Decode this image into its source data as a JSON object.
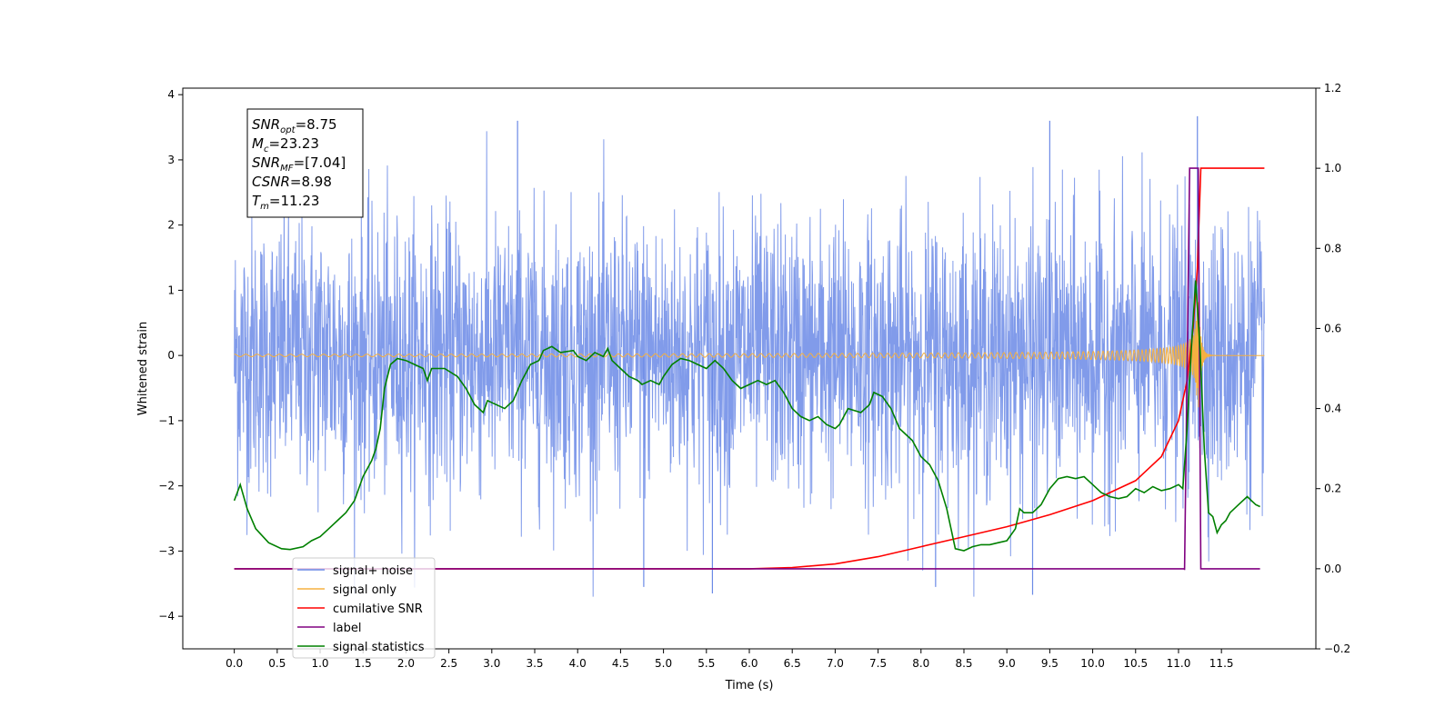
{
  "chart_data": {
    "type": "line",
    "xlabel": "Time (s)",
    "ylabel_left": "Whitened strain",
    "ylabel_right": "",
    "xlim": [
      -0.6,
      12.6
    ],
    "ylim_left": [
      -4.5,
      4.1
    ],
    "ylim_right": [
      -0.2,
      1.2
    ],
    "x_ticks": [
      "0.0",
      "0.5",
      "1.0",
      "1.5",
      "2.0",
      "2.5",
      "3.0",
      "3.5",
      "4.0",
      "4.5",
      "5.0",
      "5.5",
      "6.0",
      "6.5",
      "7.0",
      "7.5",
      "8.0",
      "8.5",
      "9.0",
      "9.5",
      "10.0",
      "10.5",
      "11.0",
      "11.5"
    ],
    "y_ticks_left": [
      "4",
      "3",
      "2",
      "1",
      "0",
      "−1",
      "−2",
      "−3",
      "−4"
    ],
    "y_ticks_right": [
      "1.2",
      "1.0",
      "0.8",
      "0.6",
      "0.4",
      "0.2",
      "0.0",
      "−0.2"
    ],
    "grid": false,
    "legend_position": "lower-left",
    "stats_box": [
      {
        "sym": "SNR",
        "sub": "opt",
        "val": "=8.75"
      },
      {
        "sym": "M",
        "sub": "c",
        "val": "=23.23"
      },
      {
        "sym": "SNR",
        "sub": "MF",
        "val": "=[7.04]"
      },
      {
        "sym": "CSNR",
        "sub": "",
        "val": "=8.98"
      },
      {
        "sym": "T",
        "sub": "m",
        "val": "=11.23"
      }
    ],
    "series": [
      {
        "name": "signal+ noise",
        "axis": "left",
        "color": "#6b8ae6",
        "style": "noise",
        "x_range": [
          0.0,
          12.0
        ],
        "amplitude_range": [
          -3.7,
          3.7
        ],
        "notable_peaks": [
          [
            11.22,
            3.67
          ],
          [
            3.3,
            3.6
          ],
          [
            9.5,
            3.6
          ],
          [
            9.3,
            -3.67
          ],
          [
            5.57,
            -3.65
          ],
          [
            4.77,
            -3.55
          ],
          [
            8.17,
            -3.55
          ]
        ]
      },
      {
        "name": "signal only",
        "axis": "left",
        "color": "#f5b041",
        "style": "chirp",
        "t_merge": 11.23,
        "x_range": [
          0.0,
          12.0
        ]
      },
      {
        "name": "cumilative SNR",
        "axis": "right",
        "color": "#ff0000",
        "points": [
          [
            0.0,
            0.0
          ],
          [
            6.0,
            0.0
          ],
          [
            6.5,
            0.003
          ],
          [
            7.0,
            0.012
          ],
          [
            7.5,
            0.03
          ],
          [
            8.0,
            0.055
          ],
          [
            8.5,
            0.08
          ],
          [
            9.0,
            0.105
          ],
          [
            9.5,
            0.135
          ],
          [
            10.0,
            0.17
          ],
          [
            10.5,
            0.22
          ],
          [
            10.8,
            0.28
          ],
          [
            11.0,
            0.37
          ],
          [
            11.1,
            0.47
          ],
          [
            11.17,
            0.6
          ],
          [
            11.22,
            0.75
          ],
          [
            11.26,
            1.0
          ],
          [
            12.0,
            1.0
          ]
        ]
      },
      {
        "name": "label",
        "axis": "right",
        "color": "#800080",
        "points": [
          [
            0.0,
            0.0
          ],
          [
            11.07,
            0.0
          ],
          [
            11.07,
            -0.003
          ],
          [
            11.13,
            1.0
          ],
          [
            11.2,
            1.0
          ],
          [
            11.23,
            1.0
          ],
          [
            11.26,
            0.0
          ],
          [
            11.95,
            0.0
          ]
        ]
      },
      {
        "name": "signal statistics",
        "axis": "right",
        "color": "#008000",
        "points": [
          [
            0.0,
            0.17
          ],
          [
            0.07,
            0.21
          ],
          [
            0.15,
            0.15
          ],
          [
            0.25,
            0.1
          ],
          [
            0.4,
            0.065
          ],
          [
            0.55,
            0.05
          ],
          [
            0.65,
            0.048
          ],
          [
            0.8,
            0.055
          ],
          [
            0.9,
            0.07
          ],
          [
            1.0,
            0.08
          ],
          [
            1.1,
            0.1
          ],
          [
            1.2,
            0.12
          ],
          [
            1.3,
            0.14
          ],
          [
            1.4,
            0.17
          ],
          [
            1.5,
            0.23
          ],
          [
            1.6,
            0.27
          ],
          [
            1.65,
            0.3
          ],
          [
            1.7,
            0.35
          ],
          [
            1.75,
            0.45
          ],
          [
            1.82,
            0.51
          ],
          [
            1.9,
            0.525
          ],
          [
            2.0,
            0.52
          ],
          [
            2.1,
            0.51
          ],
          [
            2.2,
            0.5
          ],
          [
            2.25,
            0.47
          ],
          [
            2.3,
            0.5
          ],
          [
            2.45,
            0.5
          ],
          [
            2.6,
            0.48
          ],
          [
            2.7,
            0.45
          ],
          [
            2.8,
            0.41
          ],
          [
            2.9,
            0.39
          ],
          [
            2.95,
            0.42
          ],
          [
            3.05,
            0.41
          ],
          [
            3.15,
            0.4
          ],
          [
            3.25,
            0.42
          ],
          [
            3.35,
            0.47
          ],
          [
            3.45,
            0.51
          ],
          [
            3.55,
            0.52
          ],
          [
            3.6,
            0.545
          ],
          [
            3.7,
            0.555
          ],
          [
            3.8,
            0.54
          ],
          [
            3.95,
            0.545
          ],
          [
            4.0,
            0.53
          ],
          [
            4.1,
            0.52
          ],
          [
            4.2,
            0.54
          ],
          [
            4.3,
            0.53
          ],
          [
            4.35,
            0.55
          ],
          [
            4.4,
            0.52
          ],
          [
            4.5,
            0.5
          ],
          [
            4.6,
            0.48
          ],
          [
            4.7,
            0.47
          ],
          [
            4.75,
            0.46
          ],
          [
            4.85,
            0.47
          ],
          [
            4.95,
            0.46
          ],
          [
            5.0,
            0.48
          ],
          [
            5.1,
            0.51
          ],
          [
            5.2,
            0.525
          ],
          [
            5.3,
            0.52
          ],
          [
            5.4,
            0.51
          ],
          [
            5.5,
            0.5
          ],
          [
            5.6,
            0.52
          ],
          [
            5.7,
            0.5
          ],
          [
            5.8,
            0.47
          ],
          [
            5.9,
            0.45
          ],
          [
            6.0,
            0.46
          ],
          [
            6.1,
            0.47
          ],
          [
            6.2,
            0.46
          ],
          [
            6.3,
            0.47
          ],
          [
            6.4,
            0.44
          ],
          [
            6.5,
            0.4
          ],
          [
            6.6,
            0.38
          ],
          [
            6.7,
            0.37
          ],
          [
            6.8,
            0.38
          ],
          [
            6.9,
            0.36
          ],
          [
            7.0,
            0.35
          ],
          [
            7.05,
            0.36
          ],
          [
            7.15,
            0.4
          ],
          [
            7.3,
            0.39
          ],
          [
            7.4,
            0.41
          ],
          [
            7.45,
            0.44
          ],
          [
            7.55,
            0.43
          ],
          [
            7.65,
            0.4
          ],
          [
            7.75,
            0.35
          ],
          [
            7.9,
            0.32
          ],
          [
            8.0,
            0.28
          ],
          [
            8.1,
            0.26
          ],
          [
            8.2,
            0.22
          ],
          [
            8.3,
            0.15
          ],
          [
            8.35,
            0.1
          ],
          [
            8.4,
            0.05
          ],
          [
            8.5,
            0.045
          ],
          [
            8.6,
            0.055
          ],
          [
            8.7,
            0.06
          ],
          [
            8.8,
            0.06
          ],
          [
            8.9,
            0.065
          ],
          [
            9.0,
            0.07
          ],
          [
            9.1,
            0.1
          ],
          [
            9.15,
            0.15
          ],
          [
            9.2,
            0.14
          ],
          [
            9.3,
            0.14
          ],
          [
            9.4,
            0.16
          ],
          [
            9.5,
            0.2
          ],
          [
            9.6,
            0.225
          ],
          [
            9.7,
            0.23
          ],
          [
            9.8,
            0.225
          ],
          [
            9.9,
            0.23
          ],
          [
            10.0,
            0.21
          ],
          [
            10.1,
            0.19
          ],
          [
            10.2,
            0.18
          ],
          [
            10.3,
            0.175
          ],
          [
            10.4,
            0.18
          ],
          [
            10.5,
            0.2
          ],
          [
            10.6,
            0.19
          ],
          [
            10.7,
            0.205
          ],
          [
            10.8,
            0.195
          ],
          [
            10.9,
            0.2
          ],
          [
            11.0,
            0.21
          ],
          [
            11.05,
            0.2
          ],
          [
            11.1,
            0.35
          ],
          [
            11.15,
            0.55
          ],
          [
            11.2,
            0.72
          ],
          [
            11.25,
            0.55
          ],
          [
            11.3,
            0.3
          ],
          [
            11.35,
            0.14
          ],
          [
            11.4,
            0.13
          ],
          [
            11.45,
            0.09
          ],
          [
            11.5,
            0.11
          ],
          [
            11.55,
            0.12
          ],
          [
            11.6,
            0.14
          ],
          [
            11.7,
            0.16
          ],
          [
            11.8,
            0.18
          ],
          [
            11.85,
            0.17
          ],
          [
            11.9,
            0.16
          ],
          [
            11.95,
            0.155
          ]
        ]
      }
    ],
    "legend": [
      {
        "label": "signal+ noise",
        "color": "#6b8ae6"
      },
      {
        "label": "signal only",
        "color": "#f5b041"
      },
      {
        "label": "cumilative SNR",
        "color": "#ff0000"
      },
      {
        "label": "label",
        "color": "#800080"
      },
      {
        "label": "signal statistics",
        "color": "#008000"
      }
    ]
  }
}
